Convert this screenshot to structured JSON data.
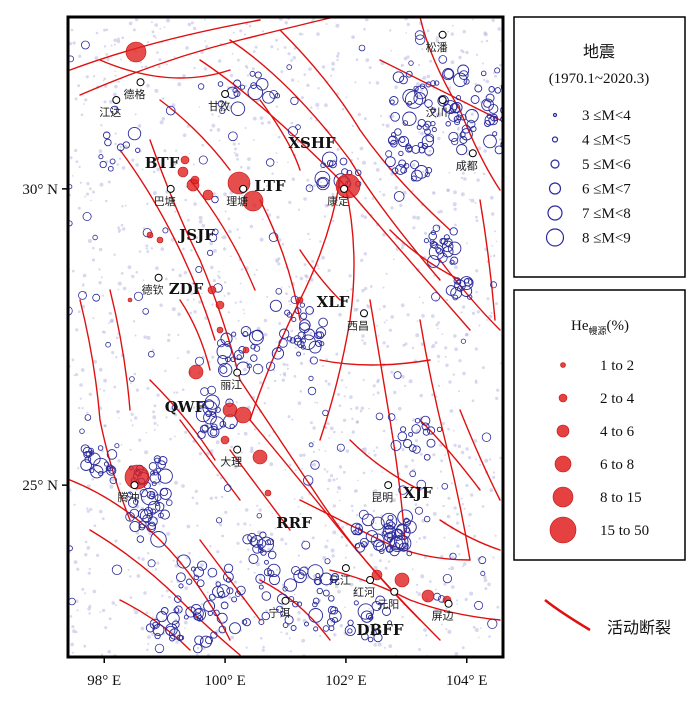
{
  "axes": {
    "x_ticks": [
      {
        "lon": 98,
        "label": "98° E"
      },
      {
        "lon": 100,
        "label": "100° E"
      },
      {
        "lon": 102,
        "label": "102° E"
      },
      {
        "lon": 104,
        "label": "104° E"
      }
    ],
    "y_ticks": [
      {
        "lat": 30,
        "label": "30° N"
      },
      {
        "lat": 25,
        "label": "25° N"
      }
    ],
    "lon_range": [
      97.4,
      104.6
    ],
    "lat_range": [
      22.1,
      32.9
    ]
  },
  "cities": [
    {
      "name": "松潘",
      "lon": 103.6,
      "lat": 32.6
    },
    {
      "name": "德格",
      "lon": 98.6,
      "lat": 31.8
    },
    {
      "name": "江达",
      "lon": 98.2,
      "lat": 31.5
    },
    {
      "name": "甘孜",
      "lon": 100.0,
      "lat": 31.6
    },
    {
      "name": "汶川",
      "lon": 103.6,
      "lat": 31.5
    },
    {
      "name": "成都",
      "lon": 104.1,
      "lat": 30.6
    },
    {
      "name": "巴塘",
      "lon": 99.1,
      "lat": 30.0
    },
    {
      "name": "理塘",
      "lon": 100.3,
      "lat": 30.0
    },
    {
      "name": "康定",
      "lon": 101.97,
      "lat": 30.0
    },
    {
      "name": "德钦",
      "lon": 98.9,
      "lat": 28.5
    },
    {
      "name": "西昌",
      "lon": 102.3,
      "lat": 27.9
    },
    {
      "name": "丽江",
      "lon": 100.2,
      "lat": 26.9
    },
    {
      "name": "大理",
      "lon": 100.2,
      "lat": 25.6
    },
    {
      "name": "腾冲",
      "lon": 98.5,
      "lat": 25.0
    },
    {
      "name": "昆明",
      "lon": 102.7,
      "lat": 25.0
    },
    {
      "name": "元江",
      "lon": 102.0,
      "lat": 23.6
    },
    {
      "name": "红河",
      "lon": 102.4,
      "lat": 23.4
    },
    {
      "name": "元阳",
      "lon": 102.8,
      "lat": 23.2
    },
    {
      "name": "宁洱",
      "lon": 101.0,
      "lat": 23.05
    },
    {
      "name": "屏边",
      "lon": 103.7,
      "lat": 23.0
    }
  ],
  "fault_labels": [
    "XSHF",
    "BTF",
    "LTF",
    "JSJF",
    "ZDF",
    "XLF",
    "QWF",
    "XJF",
    "RRF",
    "DBFF"
  ],
  "legend_eq": {
    "title": "地震",
    "period": "(1970.1~2020.3)",
    "items": [
      {
        "label": "3 ≤M<4",
        "r": 1.5
      },
      {
        "label": "4 ≤M<5",
        "r": 2.5
      },
      {
        "label": "5 ≤M<6",
        "r": 4
      },
      {
        "label": "6 ≤M<7",
        "r": 5.5
      },
      {
        "label": "7 ≤M<8",
        "r": 7
      },
      {
        "label": "8 ≤M<9",
        "r": 8.5
      }
    ]
  },
  "legend_he": {
    "title_main": "He",
    "title_sub": "幔源",
    "title_unit": "(%)",
    "items": [
      {
        "label": "1  to  2",
        "r": 2.5
      },
      {
        "label": "2  to  4",
        "r": 4
      },
      {
        "label": "4  to  6",
        "r": 6
      },
      {
        "label": "6  to  8",
        "r": 8
      },
      {
        "label": "8  to  15",
        "r": 10
      },
      {
        "label": "15  to  50",
        "r": 13
      }
    ]
  },
  "legend_fault": {
    "label": "活动断裂"
  },
  "colors": {
    "fault": "#e01010",
    "quake": "#2a2a9c",
    "helium": "#e02020",
    "frame": "#000000"
  }
}
